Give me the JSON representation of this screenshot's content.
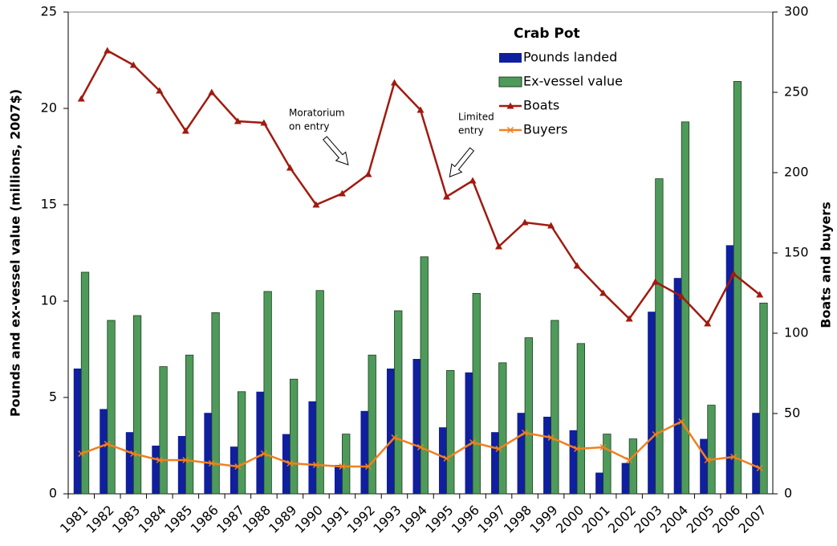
{
  "chart_data": {
    "type": "combo",
    "legend_title": "Crab Pot",
    "ylabel": "Pounds and ex-vessel value (millions, 2007$)",
    "y2label": "Boats and buyers",
    "categories": [
      "1981",
      "1982",
      "1983",
      "1984",
      "1985",
      "1986",
      "1987",
      "1988",
      "1989",
      "1990",
      "1991",
      "1992",
      "1993",
      "1994",
      "1995",
      "1996",
      "1997",
      "1998",
      "1999",
      "2000",
      "2001",
      "2002",
      "2003",
      "2004",
      "2005",
      "2006",
      "2007"
    ],
    "ylim": [
      0,
      25
    ],
    "yticks": [
      0,
      5,
      10,
      15,
      20,
      25
    ],
    "y2lim": [
      0,
      300
    ],
    "y2ticks": [
      0,
      50,
      100,
      150,
      200,
      250,
      300
    ],
    "series": [
      {
        "name": "Pounds landed",
        "type": "bar",
        "color": "#0f1f9e",
        "values": [
          6.5,
          4.4,
          3.2,
          2.5,
          3.0,
          4.2,
          2.45,
          5.3,
          3.1,
          4.8,
          1.5,
          4.3,
          6.5,
          7.0,
          3.45,
          6.3,
          3.2,
          4.2,
          4.0,
          3.3,
          1.1,
          1.6,
          9.45,
          11.2,
          2.85,
          12.9,
          4.2
        ]
      },
      {
        "name": "Ex-vessel value",
        "type": "bar",
        "color": "#4e9a5a",
        "values": [
          11.5,
          9.0,
          9.25,
          6.6,
          7.2,
          9.4,
          5.3,
          10.5,
          5.95,
          10.55,
          3.1,
          7.2,
          9.5,
          12.3,
          6.4,
          10.4,
          6.8,
          8.1,
          9.0,
          7.8,
          3.1,
          2.85,
          16.35,
          19.3,
          4.6,
          21.4,
          9.9
        ]
      },
      {
        "name": "Boats",
        "type": "line",
        "axis": "y2",
        "marker": "triangle",
        "color": "#a01a10",
        "values": [
          246,
          276,
          267,
          251,
          226,
          250,
          232,
          231,
          203,
          180,
          187,
          199,
          256,
          239,
          185,
          195,
          154,
          169,
          167,
          142,
          125,
          109,
          132,
          123,
          106,
          137,
          124
        ]
      },
      {
        "name": "Buyers",
        "type": "line",
        "axis": "y2",
        "marker": "x",
        "color": "#f08020",
        "values": [
          25,
          31,
          25,
          21,
          21,
          19,
          17,
          25,
          19,
          18,
          17,
          17,
          35,
          29,
          22,
          32,
          28,
          38,
          35,
          28,
          29,
          21,
          37,
          45,
          21,
          23,
          16
        ]
      }
    ],
    "annotations": [
      {
        "lines": [
          "Moratorium",
          "on entry"
        ]
      },
      {
        "lines": [
          "Limited",
          "entry"
        ]
      }
    ]
  }
}
